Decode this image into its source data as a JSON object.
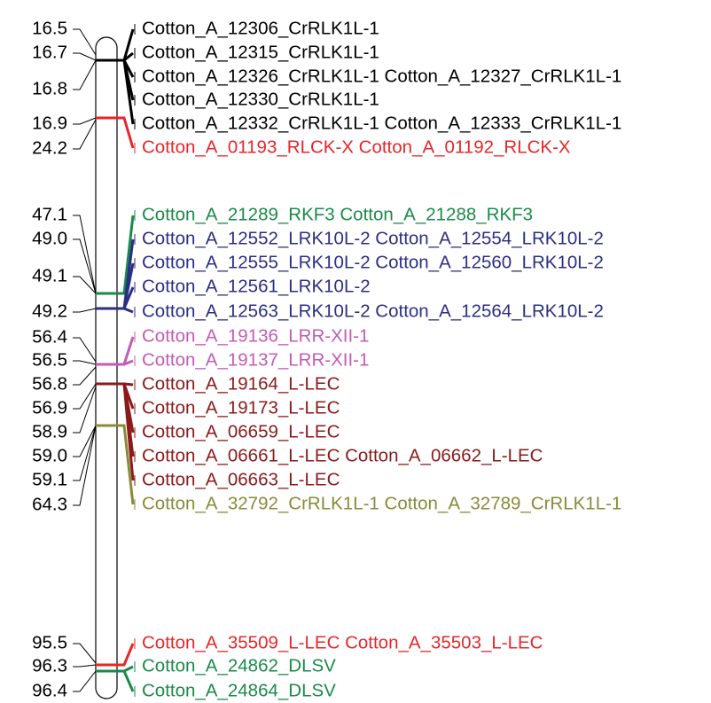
{
  "markers": [
    "16.5",
    "16.7",
    "16.8",
    "16.9",
    "24.2",
    "47.1",
    "49.0",
    "49.1",
    "49.2",
    "56.4",
    "56.5",
    "56.8",
    "56.9",
    "58.9",
    "59.0",
    "59.1",
    "64.3",
    "95.5",
    "96.3",
    "96.4"
  ],
  "genes": [
    {
      "text": "Cotton_A_12306_CrRLK1L-1",
      "color": "#000000"
    },
    {
      "text": "Cotton_A_12315_CrRLK1L-1",
      "color": "#000000"
    },
    {
      "text": "Cotton_A_12326_CrRLK1L-1 Cotton_A_12327_CrRLK1L-1",
      "color": "#000000"
    },
    {
      "text": "Cotton_A_12330_CrRLK1L-1",
      "color": "#000000"
    },
    {
      "text": "Cotton_A_12332_CrRLK1L-1 Cotton_A_12333_CrRLK1L-1",
      "color": "#000000"
    },
    {
      "text": "Cotton_A_01193_RLCK-X Cotton_A_01192_RLCK-X",
      "color": "#e8262a"
    },
    {
      "text": "Cotton_A_21289_RKF3 Cotton_A_21288_RKF3",
      "color": "#1a8a4a"
    },
    {
      "text": "Cotton_A_12552_LRK10L-2 Cotton_A_12554_LRK10L-2",
      "color": "#2b2f84"
    },
    {
      "text": "Cotton_A_12555_LRK10L-2 Cotton_A_12560_LRK10L-2",
      "color": "#2b2f84"
    },
    {
      "text": "Cotton_A_12561_LRK10L-2",
      "color": "#2b2f84"
    },
    {
      "text": "Cotton_A_12563_LRK10L-2 Cotton_A_12564_LRK10L-2",
      "color": "#2b2f84"
    },
    {
      "text": "Cotton_A_19136_LRR-XII-1",
      "color": "#c25bb5"
    },
    {
      "text": "Cotton_A_19137_LRR-XII-1",
      "color": "#c25bb5"
    },
    {
      "text": "Cotton_A_19164_L-LEC",
      "color": "#8b1a1a"
    },
    {
      "text": "Cotton_A_19173_L-LEC",
      "color": "#8b1a1a"
    },
    {
      "text": "Cotton_A_06659_L-LEC",
      "color": "#8b1a1a"
    },
    {
      "text": "Cotton_A_06661_L-LEC Cotton_A_06662_L-LEC",
      "color": "#8b1a1a"
    },
    {
      "text": "Cotton_A_06663_L-LEC",
      "color": "#8b1a1a"
    },
    {
      "text": "Cotton_A_32792_CrRLK1L-1 Cotton_A_32789_CrRLK1L-1",
      "color": "#8a8a3a"
    },
    {
      "text": "Cotton_A_35509_L-LEC Cotton_A_35503_L-LEC",
      "color": "#e8262a"
    },
    {
      "text": "Cotton_A_24862_DLSV",
      "color": "#1a8a4a"
    },
    {
      "text": "Cotton_A_24864_DLSV",
      "color": "#1a8a4a"
    }
  ]
}
